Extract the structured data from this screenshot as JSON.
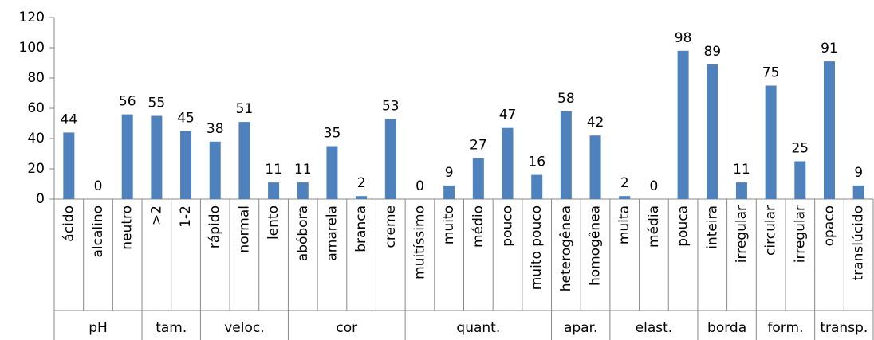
{
  "chart_data": {
    "type": "bar",
    "color": "#4f81bd",
    "ylim": [
      0,
      120
    ],
    "yticks": [
      0,
      20,
      40,
      60,
      80,
      100,
      120
    ],
    "groups": [
      {
        "name": "pH",
        "categories": [
          "ácido",
          "alcalino",
          "neutro"
        ],
        "values": [
          44,
          0,
          56
        ]
      },
      {
        "name": "tam.",
        "categories": [
          ">2",
          "1-2"
        ],
        "values": [
          55,
          45
        ]
      },
      {
        "name": "veloc.",
        "categories": [
          "rápido",
          "normal",
          "lento"
        ],
        "values": [
          38,
          51,
          11
        ]
      },
      {
        "name": "cor",
        "categories": [
          "abóbora",
          "amarela",
          "branca",
          "creme"
        ],
        "values": [
          11,
          35,
          2,
          53
        ]
      },
      {
        "name": "quant.",
        "categories": [
          "muitíssimo",
          "muito",
          "médio",
          "pouco",
          "muito pouco"
        ],
        "values": [
          0,
          9,
          27,
          47,
          16
        ]
      },
      {
        "name": "apar.",
        "categories": [
          "heterogênea",
          "homogênea"
        ],
        "values": [
          58,
          42
        ]
      },
      {
        "name": "elast.",
        "categories": [
          "muita",
          "média",
          "pouca"
        ],
        "values": [
          2,
          0,
          98
        ]
      },
      {
        "name": "borda",
        "categories": [
          "inteira",
          "irregular"
        ],
        "values": [
          89,
          11
        ]
      },
      {
        "name": "form.",
        "categories": [
          "circular",
          "irregular"
        ],
        "values": [
          75,
          25
        ]
      },
      {
        "name": "transp.",
        "categories": [
          "opaco",
          "translúcido"
        ],
        "values": [
          91,
          9
        ]
      }
    ]
  }
}
